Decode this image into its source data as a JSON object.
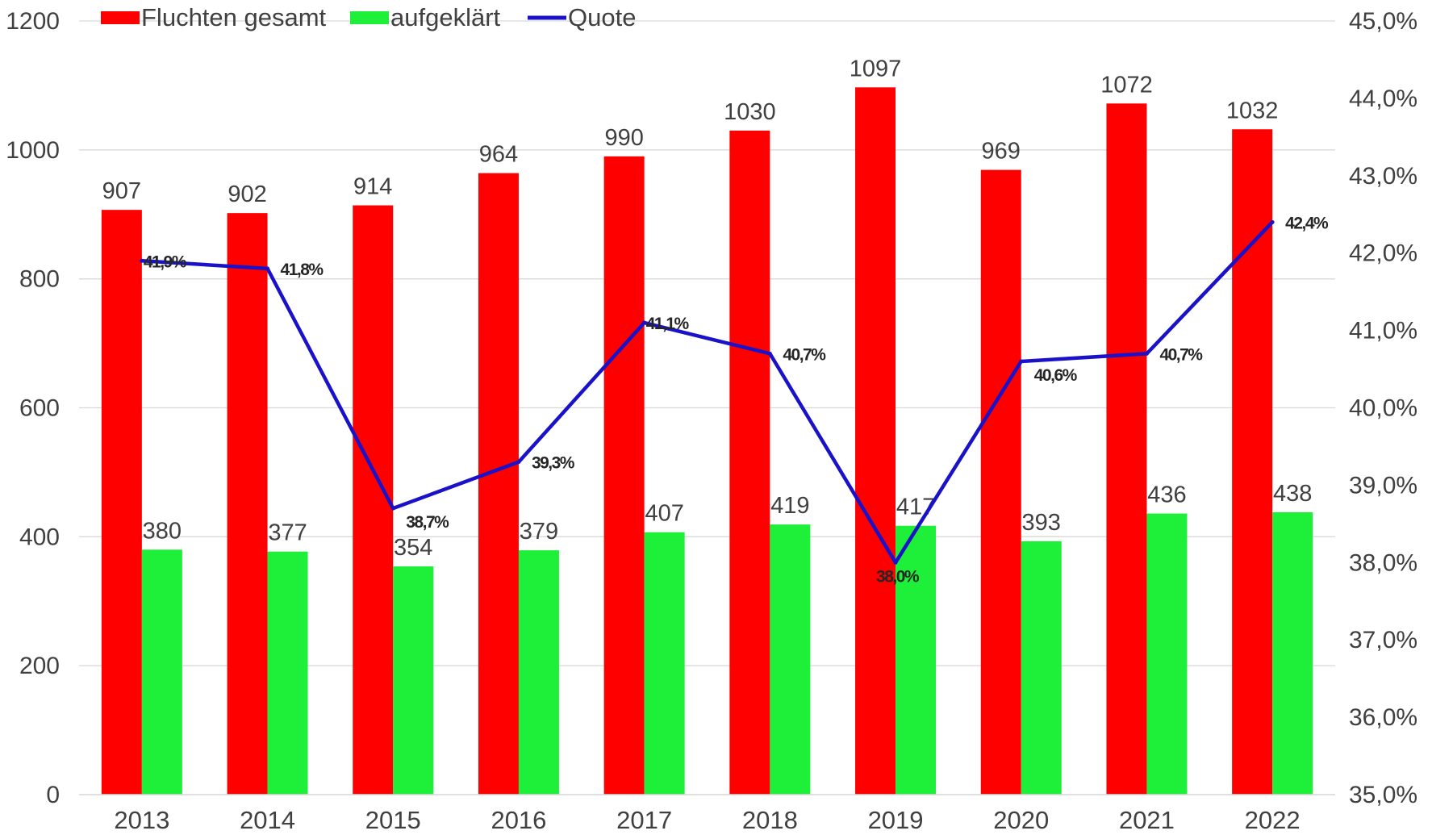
{
  "chart_data": {
    "type": "bar",
    "categories": [
      "2013",
      "2014",
      "2015",
      "2016",
      "2017",
      "2018",
      "2019",
      "2020",
      "2021",
      "2022"
    ],
    "series": [
      {
        "name": "Fluchten gesamt",
        "kind": "bar",
        "axis": "left",
        "color": "#ff0000",
        "values": [
          907,
          902,
          914,
          964,
          990,
          1030,
          1097,
          969,
          1072,
          1032
        ],
        "labels": [
          "907",
          "902",
          "914",
          "964",
          "990",
          "1030",
          "1097",
          "969",
          "1072",
          "1032"
        ]
      },
      {
        "name": "aufgeklärt",
        "kind": "bar",
        "axis": "left",
        "color": "#1ef03a",
        "values": [
          380,
          377,
          354,
          379,
          407,
          419,
          417,
          393,
          436,
          438
        ],
        "labels": [
          "380",
          "377",
          "354",
          "379",
          "407",
          "419",
          "417",
          "393",
          "436",
          "438"
        ]
      },
      {
        "name": "Quote",
        "kind": "line",
        "axis": "right",
        "color": "#1a12c8",
        "values": [
          41.9,
          41.8,
          38.7,
          39.3,
          41.1,
          40.7,
          38.0,
          40.6,
          40.7,
          42.4
        ],
        "labels": [
          "41,9%",
          "41,8%",
          "38,7%",
          "39,3%",
          "41,1%",
          "40,7%",
          "38,0%",
          "40,6%",
          "40,7%",
          "42,4%"
        ]
      }
    ],
    "y_left": {
      "min": 0,
      "max": 1200,
      "ticks": [
        0,
        200,
        400,
        600,
        800,
        1000,
        1200
      ],
      "tick_labels": [
        "0",
        "200",
        "400",
        "600",
        "800",
        "1000",
        "1200"
      ]
    },
    "y_right": {
      "min": 35,
      "max": 45,
      "ticks": [
        35,
        36,
        37,
        38,
        39,
        40,
        41,
        42,
        43,
        44,
        45
      ],
      "tick_labels": [
        "35,0%",
        "36,0%",
        "37,0%",
        "38,0%",
        "39,0%",
        "40,0%",
        "41,0%",
        "42,0%",
        "43,0%",
        "44,0%",
        "45,0%"
      ]
    },
    "grid": true,
    "legend": {
      "position": "top",
      "entries": [
        "Fluchten gesamt",
        "aufgeklärt",
        "Quote"
      ]
    },
    "colors": {
      "gridline": "#d9d9d9",
      "text": "#404040"
    }
  }
}
